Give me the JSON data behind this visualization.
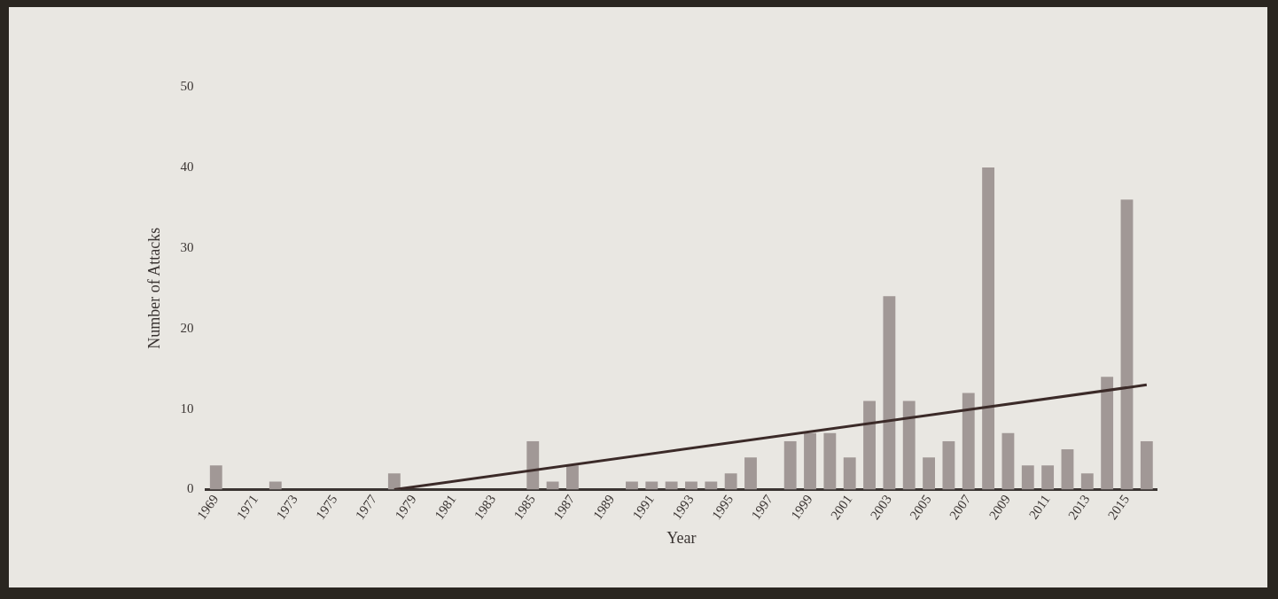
{
  "chart_data": {
    "type": "bar",
    "xlabel": "Year",
    "ylabel": "Number of Attacks",
    "x": [
      1969,
      1970,
      1971,
      1972,
      1973,
      1974,
      1975,
      1976,
      1977,
      1978,
      1979,
      1980,
      1981,
      1982,
      1983,
      1984,
      1985,
      1986,
      1987,
      1988,
      1989,
      1990,
      1991,
      1992,
      1993,
      1994,
      1995,
      1996,
      1997,
      1998,
      1999,
      2000,
      2001,
      2002,
      2003,
      2004,
      2005,
      2006,
      2007,
      2008,
      2009,
      2010,
      2011,
      2012,
      2013,
      2014,
      2015,
      2016
    ],
    "series": [
      {
        "color": "#a19896",
        "values": [
          3,
          0,
          0,
          1,
          0,
          0,
          0,
          0,
          0,
          2,
          0,
          0,
          0,
          0,
          0,
          0,
          6,
          1,
          3,
          0,
          0,
          1,
          1,
          1,
          1,
          1,
          2,
          4,
          0,
          6,
          7,
          7,
          4,
          11,
          24,
          11,
          4,
          6,
          12,
          40,
          7,
          3,
          3,
          5,
          2,
          14,
          36,
          6
        ]
      },
      {
        "type": "line",
        "color": "#3b2a28",
        "x": [
          1978,
          2016
        ],
        "values": [
          0,
          13
        ]
      }
    ],
    "xlim": [
      1968.5,
      2016.5
    ],
    "xticks": [
      1969,
      1971,
      1973,
      1975,
      1977,
      1979,
      1981,
      1983,
      1985,
      1987,
      1989,
      1991,
      1993,
      1995,
      1997,
      1999,
      2001,
      2003,
      2005,
      2007,
      2009,
      2011,
      2013,
      2015
    ],
    "ylim": [
      0,
      50
    ],
    "yticks": [
      0,
      10,
      20,
      30,
      40,
      50
    ],
    "grid": false,
    "legend": false
  }
}
